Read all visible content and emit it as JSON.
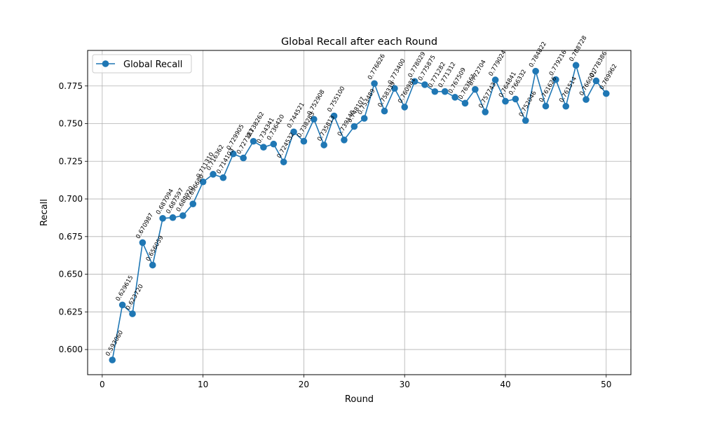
{
  "chart_data": {
    "type": "line",
    "title": "Global Recall after each Round",
    "xlabel": "Round",
    "ylabel": "Recall",
    "xlim": [
      -1.45,
      52.45
    ],
    "ylim": [
      0.5833,
      0.7986
    ],
    "xticks": [
      0,
      10,
      20,
      30,
      40,
      50
    ],
    "yticks": [
      0.6,
      0.625,
      0.65,
      0.675,
      0.7,
      0.725,
      0.75,
      0.775
    ],
    "xtick_labels": [
      "0",
      "10",
      "20",
      "30",
      "40",
      "50"
    ],
    "ytick_labels": [
      "0.600",
      "0.625",
      "0.650",
      "0.675",
      "0.700",
      "0.725",
      "0.750",
      "0.775"
    ],
    "grid": true,
    "legend_position": "upper-left",
    "series": [
      {
        "name": "Global Recall",
        "color": "#1f77b4",
        "marker": "circle",
        "x": [
          1,
          2,
          3,
          4,
          5,
          6,
          7,
          8,
          9,
          10,
          11,
          12,
          13,
          14,
          15,
          16,
          17,
          18,
          19,
          20,
          21,
          22,
          23,
          24,
          25,
          26,
          27,
          28,
          29,
          30,
          31,
          32,
          33,
          34,
          35,
          36,
          37,
          38,
          39,
          40,
          41,
          42,
          43,
          44,
          45,
          46,
          47,
          48,
          49,
          50
        ],
        "y": [
          0.59306,
          0.629615,
          0.62372,
          0.670987,
          0.656059,
          0.687094,
          0.687597,
          0.68892,
          0.69668,
          0.71131,
          0.716362,
          0.714103,
          0.729905,
          0.727181,
          0.738262,
          0.734341,
          0.73642,
          0.724532,
          0.744521,
          0.738283,
          0.752908,
          0.735813,
          0.7551,
          0.739148,
          0.748107,
          0.753489,
          0.776626,
          0.758339,
          0.7734,
          0.760981,
          0.778029,
          0.775875,
          0.771282,
          0.771312,
          0.767509,
          0.763561,
          0.772704,
          0.757743,
          0.779024,
          0.764841,
          0.766332,
          0.752046,
          0.784822,
          0.761626,
          0.779216,
          0.761514,
          0.788728,
          0.766001,
          0.778386,
          0.769962
        ],
        "labels": [
          "0.593060",
          "0.629615",
          "0.623720",
          "0.670987",
          "0.656059",
          "0.687094",
          "0.687597",
          "0.688920",
          "0.696680",
          "0.711310",
          "0.716362",
          "0.714103",
          "0.729905",
          "0.727181",
          "0.738262",
          "0.734341",
          "0.736420",
          "0.724532",
          "0.744521",
          "0.738283",
          "0.752908",
          "0.735813",
          "0.755100",
          "0.739148",
          "0.748107",
          "0.753489",
          "0.776626",
          "0.758339",
          "0.773400",
          "0.760981",
          "0.778029",
          "0.775875",
          "0.771282",
          "0.771312",
          "0.767509",
          "0.763561",
          "0.772704",
          "0.757743",
          "0.779024",
          "0.764841",
          "0.766332",
          "0.752046",
          "0.784822",
          "0.761626",
          "0.779216",
          "0.761514",
          "0.788728",
          "0.766001",
          "0.778386",
          "0.769962"
        ]
      }
    ]
  }
}
